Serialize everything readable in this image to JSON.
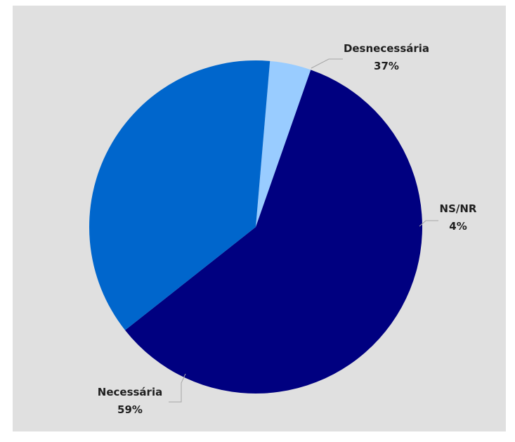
{
  "chart_data": {
    "type": "pie",
    "background_color": "#e0e0e0",
    "start_angle_deg": 85.1,
    "direction": "clockwise",
    "slices": [
      {
        "label": "NS/NR",
        "value": 4,
        "value_label": "4%",
        "color": "#99ccff"
      },
      {
        "label": "Necessária",
        "value": 59,
        "value_label": "59%",
        "color": "#000080"
      },
      {
        "label": "Desnecessária",
        "value": 37,
        "value_label": "37%",
        "color": "#0066cc"
      }
    ],
    "label_color": "#1f1f1f",
    "leader_line_color": "#a6a6a6"
  }
}
